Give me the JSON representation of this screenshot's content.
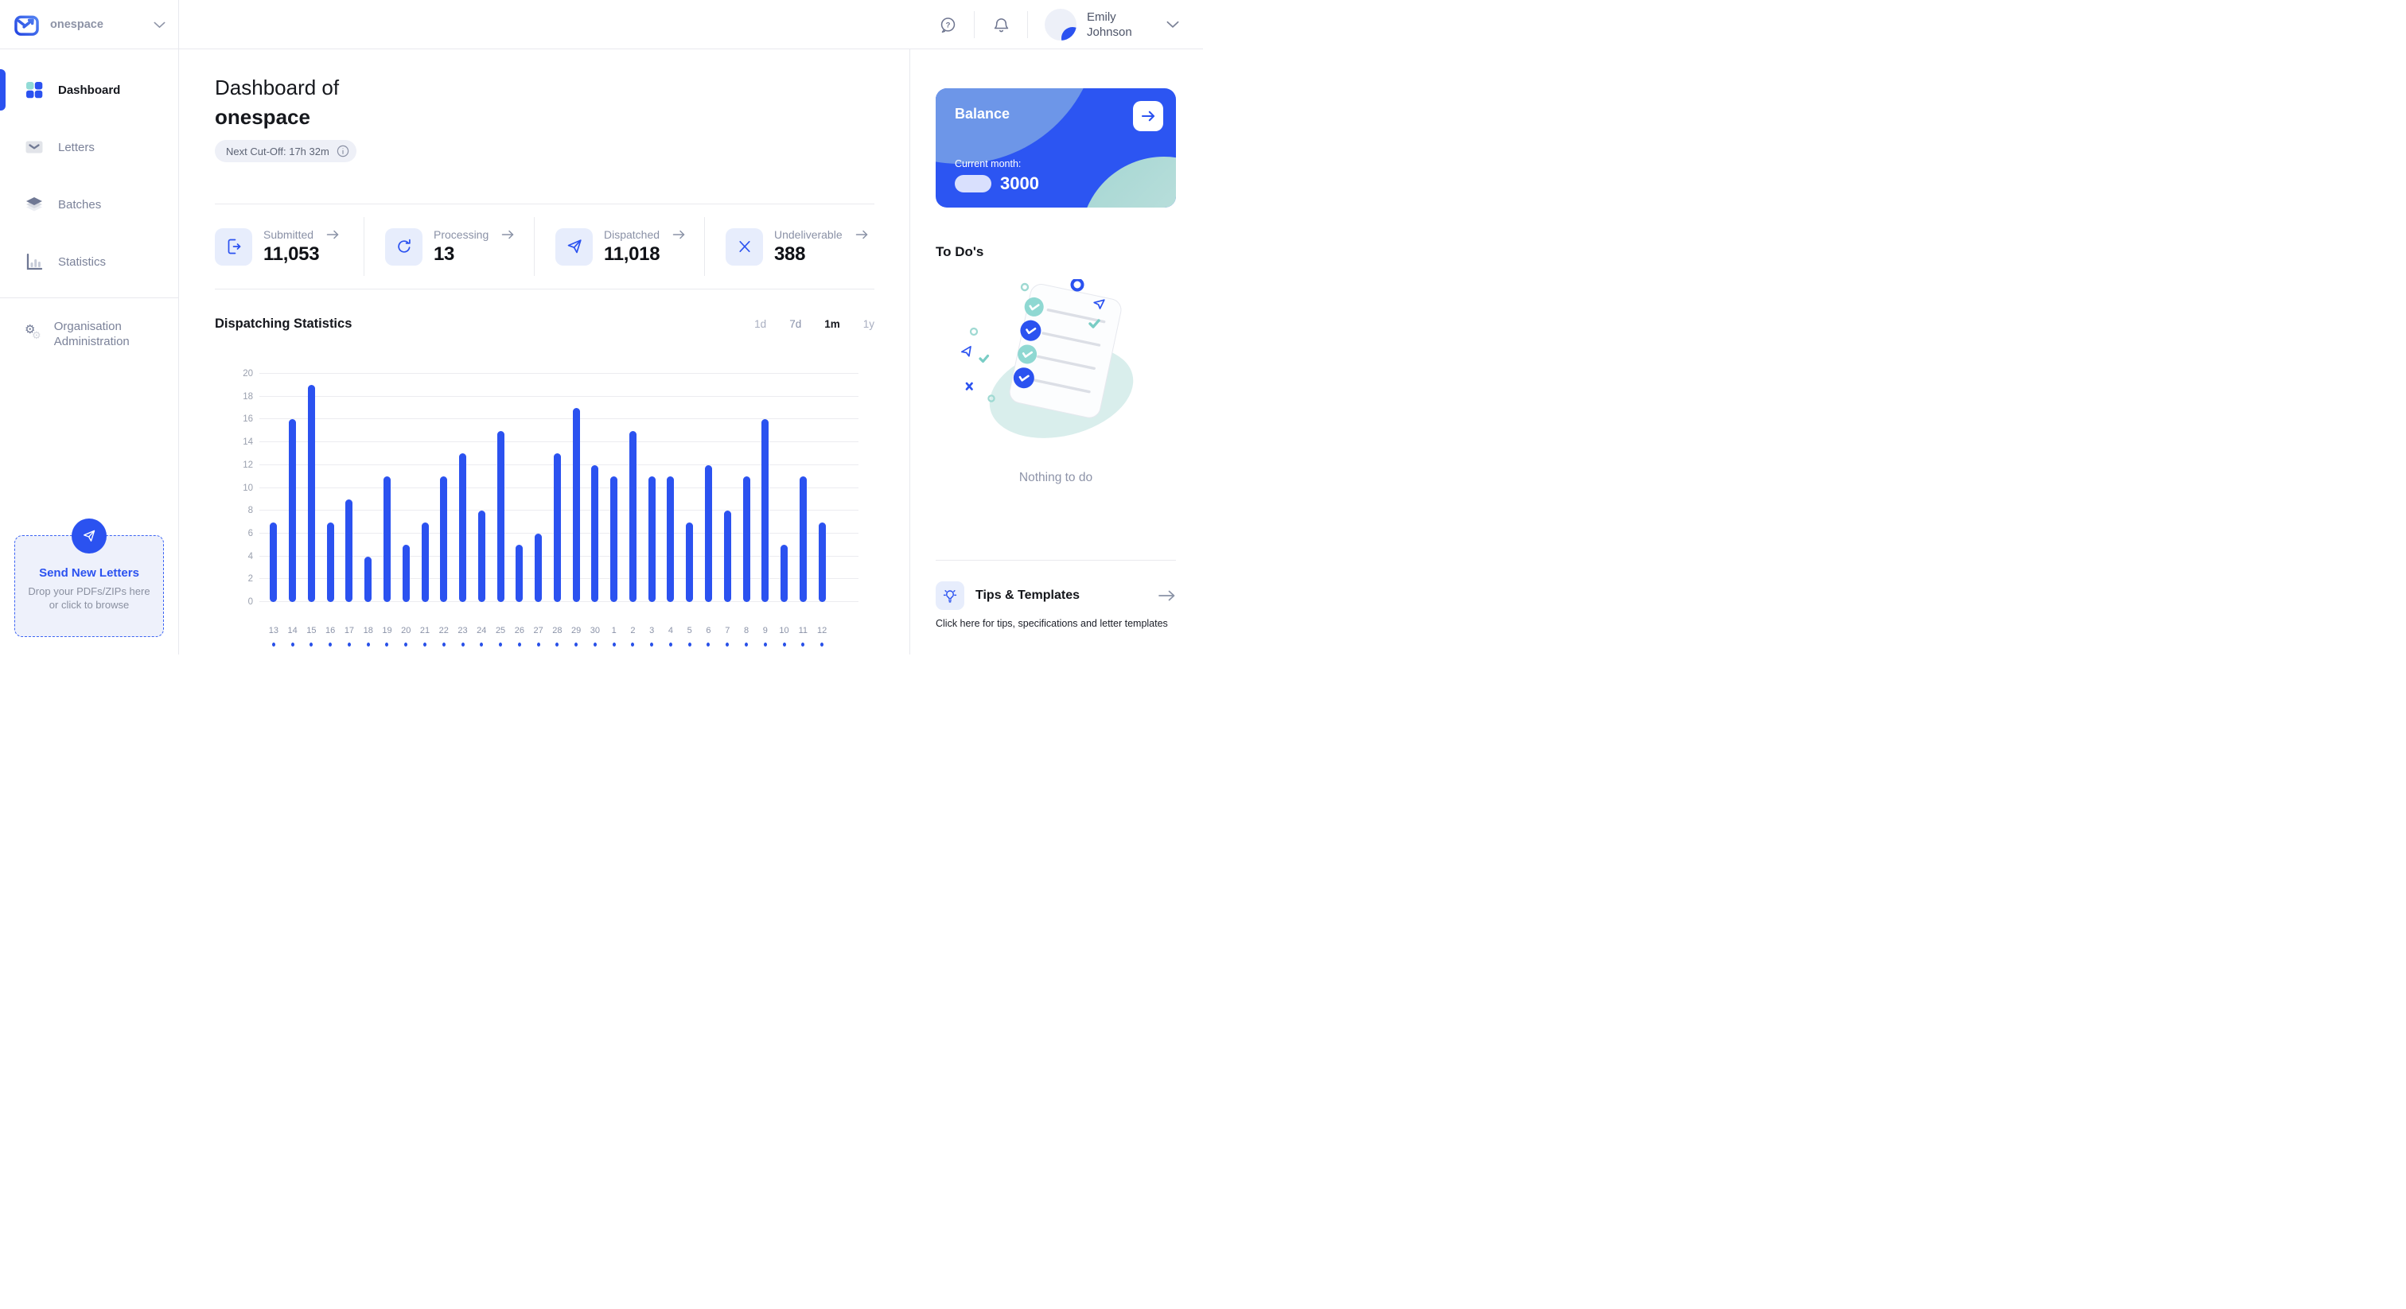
{
  "header": {
    "brand": "onespace",
    "user_name": "Emily Johnson"
  },
  "sidebar": {
    "items": [
      {
        "label": "Dashboard",
        "icon": "dashboard",
        "active": true
      },
      {
        "label": "Letters",
        "icon": "letters",
        "active": false
      },
      {
        "label": "Batches",
        "icon": "batches",
        "active": false
      },
      {
        "label": "Statistics",
        "icon": "statistics",
        "active": false
      },
      {
        "label": "Organisation Administration",
        "icon": "organisation-administration",
        "active": false,
        "divider_above": true
      }
    ],
    "dropzone": {
      "title": "Send New Letters",
      "subtitle": "Drop your PDFs/ZIPs here or click to browse"
    }
  },
  "main": {
    "title_prefix": "Dashboard of",
    "title_org": "onespace",
    "cutoff_chip": "Next Cut-Off: 17h 32m",
    "stats": [
      {
        "label": "Submitted",
        "value": "11,053",
        "icon": "document-out"
      },
      {
        "label": "Processing",
        "value": "13",
        "icon": "refresh"
      },
      {
        "label": "Dispatched",
        "value": "11,018",
        "icon": "paper-plane"
      },
      {
        "label": "Undeliverable",
        "value": "388",
        "icon": "x-mark"
      }
    ],
    "chart_title": "Dispatching Statistics",
    "ranges": [
      {
        "label": "1d",
        "active": false
      },
      {
        "label": "7d",
        "active": false
      },
      {
        "label": "1m",
        "active": true
      },
      {
        "label": "1y",
        "active": false
      }
    ]
  },
  "chart_data": {
    "type": "bar",
    "title": "Dispatching Statistics",
    "categories": [
      "13",
      "14",
      "15",
      "16",
      "17",
      "18",
      "19",
      "20",
      "21",
      "22",
      "23",
      "24",
      "25",
      "26",
      "27",
      "28",
      "29",
      "30",
      "1",
      "2",
      "3",
      "4",
      "5",
      "6",
      "7",
      "8",
      "9",
      "10",
      "11",
      "12"
    ],
    "values": [
      7,
      16,
      19,
      7,
      9,
      4,
      11,
      5,
      7,
      11,
      13,
      8,
      15,
      5,
      6,
      13,
      17,
      12,
      11,
      15,
      11,
      11,
      7,
      12,
      8,
      11,
      16,
      5,
      11,
      7
    ],
    "xlabel": "",
    "ylabel": "",
    "ylim": [
      0,
      20
    ],
    "yticks": [
      0,
      2,
      4,
      6,
      8,
      10,
      12,
      14,
      16,
      18,
      20
    ],
    "grid": true,
    "legend": "none",
    "bar_color": "#2b52f0"
  },
  "right": {
    "balance": {
      "title": "Balance",
      "period_label": "Current month:",
      "value": "3000"
    },
    "todos": {
      "title": "To Do's",
      "empty_text": "Nothing to do"
    },
    "tips": {
      "title": "Tips & Templates",
      "description": "Click here for tips, specifications and letter templates"
    }
  },
  "colors": {
    "accent_blue": "#2b52f0",
    "teal": "#8fd8d2",
    "balance_bg": "#2c55f2",
    "balance_blob_light": "#6d96e8",
    "icon_box_bg": "#e7edfc",
    "border": "#e8e9ee",
    "muted_text": "#8a91a6"
  }
}
